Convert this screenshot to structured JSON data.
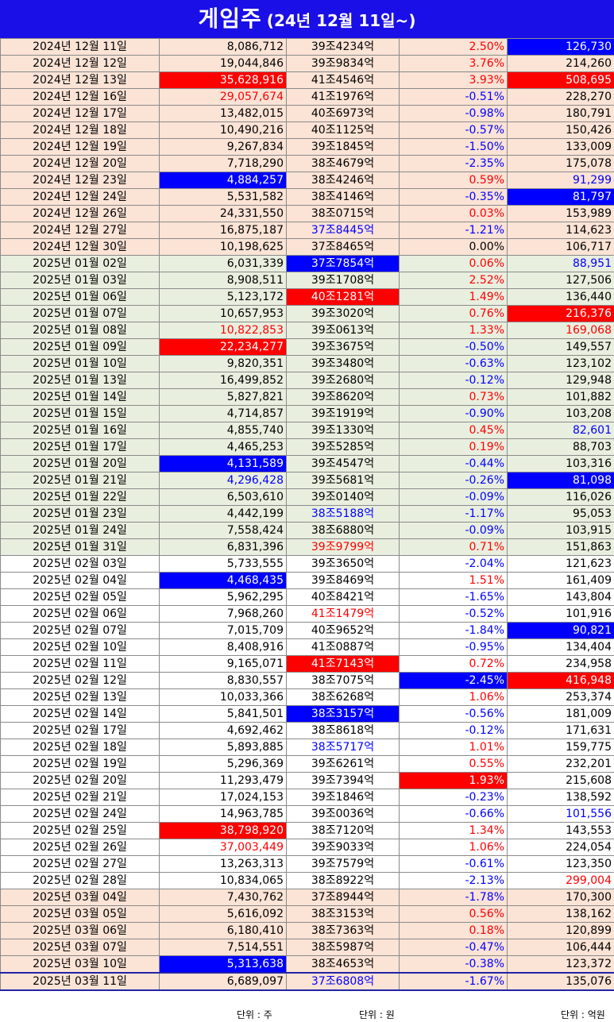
{
  "title": {
    "main": "게임주",
    "sub": "(24년 12월 11일~)"
  },
  "colors": {
    "title_bg": "#1a0fe6",
    "up": "#ff0000",
    "down": "#0000ff",
    "bg_2024": "#fbe3d6",
    "bg_jan": "#e9efdf",
    "bg_feb": "#ffffff"
  },
  "rows": [
    {
      "date": "2024년 12월 11일",
      "volume": "8,086,712",
      "mcap": "39조4234억",
      "change": "2.50%",
      "value": "126,730",
      "band": "y2024",
      "st": [
        "",
        "",
        "",
        "red",
        "hl-blue"
      ]
    },
    {
      "date": "2024년 12월 12일",
      "volume": "19,044,846",
      "mcap": "39조9834억",
      "change": "3.76%",
      "value": "214,260",
      "band": "y2024",
      "st": [
        "",
        "",
        "",
        "red",
        ""
      ]
    },
    {
      "date": "2024년 12월 13일",
      "volume": "35,628,916",
      "mcap": "41조4546억",
      "change": "3.93%",
      "value": "508,695",
      "band": "y2024",
      "st": [
        "",
        "hl-red",
        "",
        "red",
        "hl-red"
      ]
    },
    {
      "date": "2024년 12월 16일",
      "volume": "29,057,674",
      "mcap": "41조1976억",
      "change": "-0.51%",
      "value": "228,270",
      "band": "y2024",
      "st": [
        "",
        "red",
        "",
        "blue",
        ""
      ]
    },
    {
      "date": "2024년 12월 17일",
      "volume": "13,482,015",
      "mcap": "40조6973억",
      "change": "-0.98%",
      "value": "180,791",
      "band": "y2024",
      "st": [
        "",
        "",
        "",
        "blue",
        ""
      ]
    },
    {
      "date": "2024년 12월 18일",
      "volume": "10,490,216",
      "mcap": "40조1125억",
      "change": "-0.57%",
      "value": "150,426",
      "band": "y2024",
      "st": [
        "",
        "",
        "",
        "blue",
        ""
      ]
    },
    {
      "date": "2024년 12월 19일",
      "volume": "9,267,834",
      "mcap": "39조1845억",
      "change": "-1.50%",
      "value": "133,009",
      "band": "y2024",
      "st": [
        "",
        "",
        "",
        "blue",
        ""
      ]
    },
    {
      "date": "2024년 12월 20일",
      "volume": "7,718,290",
      "mcap": "38조4679억",
      "change": "-2.35%",
      "value": "175,078",
      "band": "y2024",
      "st": [
        "",
        "",
        "",
        "blue",
        ""
      ]
    },
    {
      "date": "2024년 12월 23일",
      "volume": "4,884,257",
      "mcap": "38조4246억",
      "change": "0.59%",
      "value": "91,299",
      "band": "y2024",
      "st": [
        "",
        "hl-blue",
        "",
        "red",
        "blue"
      ]
    },
    {
      "date": "2024년 12월 24일",
      "volume": "5,531,582",
      "mcap": "38조4146억",
      "change": "-0.35%",
      "value": "81,797",
      "band": "y2024",
      "st": [
        "",
        "",
        "",
        "blue",
        "hl-blue"
      ]
    },
    {
      "date": "2024년 12월 26일",
      "volume": "24,331,550",
      "mcap": "38조0715억",
      "change": "0.03%",
      "value": "153,989",
      "band": "y2024",
      "st": [
        "",
        "",
        "",
        "red",
        ""
      ]
    },
    {
      "date": "2024년 12월 27일",
      "volume": "16,875,187",
      "mcap": "37조8445억",
      "change": "-1.21%",
      "value": "114,623",
      "band": "y2024",
      "st": [
        "",
        "",
        "blue",
        "blue",
        ""
      ]
    },
    {
      "date": "2024년 12월 30일",
      "volume": "10,198,625",
      "mcap": "37조8465억",
      "change": "0.00%",
      "value": "106,717",
      "band": "y2024",
      "st": [
        "",
        "",
        "",
        "",
        ""
      ]
    },
    {
      "date": "2025년 01월 02일",
      "volume": "6,031,339",
      "mcap": "37조7854억",
      "change": "0.06%",
      "value": "88,951",
      "band": "jan25",
      "st": [
        "",
        "",
        "hl-blue",
        "red",
        "blue"
      ]
    },
    {
      "date": "2025년 01월 03일",
      "volume": "8,908,511",
      "mcap": "39조1708억",
      "change": "2.52%",
      "value": "127,506",
      "band": "jan25",
      "st": [
        "",
        "",
        "",
        "red",
        ""
      ]
    },
    {
      "date": "2025년 01월 06일",
      "volume": "5,123,172",
      "mcap": "40조1281억",
      "change": "1.49%",
      "value": "136,440",
      "band": "jan25",
      "st": [
        "",
        "",
        "hl-red",
        "red",
        ""
      ]
    },
    {
      "date": "2025년 01월 07일",
      "volume": "10,657,953",
      "mcap": "39조3020억",
      "change": "0.76%",
      "value": "216,376",
      "band": "jan25",
      "st": [
        "",
        "",
        "",
        "red",
        "hl-red"
      ]
    },
    {
      "date": "2025년 01월 08일",
      "volume": "10,822,853",
      "mcap": "39조0613억",
      "change": "1.33%",
      "value": "169,068",
      "band": "jan25",
      "st": [
        "",
        "red",
        "",
        "red",
        "red"
      ]
    },
    {
      "date": "2025년 01월 09일",
      "volume": "22,234,277",
      "mcap": "39조3675억",
      "change": "-0.50%",
      "value": "149,557",
      "band": "jan25",
      "st": [
        "",
        "hl-red",
        "",
        "blue",
        ""
      ]
    },
    {
      "date": "2025년 01월 10일",
      "volume": "9,820,351",
      "mcap": "39조3480억",
      "change": "-0.63%",
      "value": "123,102",
      "band": "jan25",
      "st": [
        "",
        "",
        "",
        "blue",
        ""
      ]
    },
    {
      "date": "2025년 01월 13일",
      "volume": "16,499,852",
      "mcap": "39조2680억",
      "change": "-0.12%",
      "value": "129,948",
      "band": "jan25",
      "st": [
        "",
        "",
        "",
        "blue",
        ""
      ]
    },
    {
      "date": "2025년 01월 14일",
      "volume": "5,827,821",
      "mcap": "39조8620억",
      "change": "0.73%",
      "value": "101,882",
      "band": "jan25",
      "st": [
        "",
        "",
        "",
        "red",
        ""
      ]
    },
    {
      "date": "2025년 01월 15일",
      "volume": "4,714,857",
      "mcap": "39조1919억",
      "change": "-0.90%",
      "value": "103,208",
      "band": "jan25",
      "st": [
        "",
        "",
        "",
        "blue",
        ""
      ]
    },
    {
      "date": "2025년 01월 16일",
      "volume": "4,855,740",
      "mcap": "39조1330억",
      "change": "0.45%",
      "value": "82,601",
      "band": "jan25",
      "st": [
        "",
        "",
        "",
        "red",
        "blue"
      ]
    },
    {
      "date": "2025년 01월 17일",
      "volume": "4,465,253",
      "mcap": "39조5285억",
      "change": "0.19%",
      "value": "88,703",
      "band": "jan25",
      "st": [
        "",
        "",
        "",
        "red",
        ""
      ]
    },
    {
      "date": "2025년 01월 20일",
      "volume": "4,131,589",
      "mcap": "39조4547억",
      "change": "-0.44%",
      "value": "103,316",
      "band": "jan25",
      "st": [
        "",
        "hl-blue",
        "",
        "blue",
        ""
      ]
    },
    {
      "date": "2025년 01월 21일",
      "volume": "4,296,428",
      "mcap": "39조5681억",
      "change": "-0.26%",
      "value": "81,098",
      "band": "jan25",
      "st": [
        "",
        "blue",
        "",
        "blue",
        "hl-blue"
      ]
    },
    {
      "date": "2025년 01월 22일",
      "volume": "6,503,610",
      "mcap": "39조0140억",
      "change": "-0.09%",
      "value": "116,026",
      "band": "jan25",
      "st": [
        "",
        "",
        "",
        "blue",
        ""
      ]
    },
    {
      "date": "2025년 01월 23일",
      "volume": "4,442,199",
      "mcap": "38조5188억",
      "change": "-1.17%",
      "value": "95,053",
      "band": "jan25",
      "st": [
        "",
        "",
        "blue",
        "blue",
        ""
      ]
    },
    {
      "date": "2025년 01월 24일",
      "volume": "7,558,424",
      "mcap": "38조6880억",
      "change": "-0.09%",
      "value": "103,915",
      "band": "jan25",
      "st": [
        "",
        "",
        "",
        "blue",
        ""
      ]
    },
    {
      "date": "2025년 01월 31일",
      "volume": "6,831,396",
      "mcap": "39조9799억",
      "change": "0.71%",
      "value": "151,863",
      "band": "jan25",
      "st": [
        "",
        "",
        "red",
        "red",
        ""
      ]
    },
    {
      "date": "2025년 02월 03일",
      "volume": "5,733,555",
      "mcap": "39조3650억",
      "change": "-2.04%",
      "value": "121,623",
      "band": "feb25",
      "st": [
        "",
        "",
        "",
        "blue",
        ""
      ]
    },
    {
      "date": "2025년 02월 04일",
      "volume": "4,468,435",
      "mcap": "39조8469억",
      "change": "1.51%",
      "value": "161,409",
      "band": "feb25",
      "st": [
        "",
        "hl-blue",
        "",
        "red",
        ""
      ]
    },
    {
      "date": "2025년 02월 05일",
      "volume": "5,962,295",
      "mcap": "40조8421억",
      "change": "-1.65%",
      "value": "143,804",
      "band": "feb25",
      "st": [
        "",
        "",
        "",
        "blue",
        ""
      ]
    },
    {
      "date": "2025년 02월 06일",
      "volume": "7,968,260",
      "mcap": "41조1479억",
      "change": "-0.52%",
      "value": "101,916",
      "band": "feb25",
      "st": [
        "",
        "",
        "red",
        "blue",
        ""
      ]
    },
    {
      "date": "2025년 02월 07일",
      "volume": "7,015,709",
      "mcap": "40조9652억",
      "change": "-1.84%",
      "value": "90,821",
      "band": "feb25",
      "st": [
        "",
        "",
        "",
        "blue",
        "hl-blue"
      ]
    },
    {
      "date": "2025년 02월 10일",
      "volume": "8,408,916",
      "mcap": "41조0887억",
      "change": "-0.95%",
      "value": "134,404",
      "band": "feb25",
      "st": [
        "",
        "",
        "",
        "blue",
        ""
      ]
    },
    {
      "date": "2025년 02월 11일",
      "volume": "9,165,071",
      "mcap": "41조7143억",
      "change": "0.72%",
      "value": "234,958",
      "band": "feb25",
      "st": [
        "",
        "",
        "hl-red",
        "red",
        ""
      ]
    },
    {
      "date": "2025년 02월 12일",
      "volume": "8,830,557",
      "mcap": "38조7075억",
      "change": "-2.45%",
      "value": "416,948",
      "band": "feb25",
      "st": [
        "",
        "",
        "",
        "hl-blue",
        "hl-red"
      ]
    },
    {
      "date": "2025년 02월 13일",
      "volume": "10,033,366",
      "mcap": "38조6268억",
      "change": "1.06%",
      "value": "253,374",
      "band": "feb25",
      "st": [
        "",
        "",
        "",
        "red",
        ""
      ]
    },
    {
      "date": "2025년 02월 14일",
      "volume": "5,841,501",
      "mcap": "38조3157억",
      "change": "-0.56%",
      "value": "181,009",
      "band": "feb25",
      "st": [
        "",
        "",
        "hl-blue",
        "blue",
        ""
      ]
    },
    {
      "date": "2025년 02월 17일",
      "volume": "4,692,462",
      "mcap": "38조8618억",
      "change": "-0.12%",
      "value": "171,631",
      "band": "feb25",
      "st": [
        "",
        "",
        "",
        "blue",
        ""
      ]
    },
    {
      "date": "2025년 02월 18일",
      "volume": "5,893,885",
      "mcap": "38조5717억",
      "change": "1.01%",
      "value": "159,775",
      "band": "feb25",
      "st": [
        "",
        "",
        "blue",
        "red",
        ""
      ]
    },
    {
      "date": "2025년 02월 19일",
      "volume": "5,296,369",
      "mcap": "39조6261억",
      "change": "0.55%",
      "value": "232,201",
      "band": "feb25",
      "st": [
        "",
        "",
        "",
        "red",
        ""
      ]
    },
    {
      "date": "2025년 02월 20일",
      "volume": "11,293,479",
      "mcap": "39조7394억",
      "change": "1.93%",
      "value": "215,608",
      "band": "feb25",
      "st": [
        "",
        "",
        "",
        "hl-red",
        ""
      ]
    },
    {
      "date": "2025년 02월 21일",
      "volume": "17,024,153",
      "mcap": "39조1846억",
      "change": "-0.23%",
      "value": "138,592",
      "band": "feb25",
      "st": [
        "",
        "",
        "",
        "blue",
        ""
      ]
    },
    {
      "date": "2025년 02월 24일",
      "volume": "14,963,785",
      "mcap": "39조0036억",
      "change": "-0.66%",
      "value": "101,556",
      "band": "feb25",
      "st": [
        "",
        "",
        "",
        "blue",
        "blue"
      ]
    },
    {
      "date": "2025년 02월 25일",
      "volume": "38,798,920",
      "mcap": "38조7120억",
      "change": "1.34%",
      "value": "143,553",
      "band": "feb25",
      "st": [
        "",
        "hl-red",
        "",
        "red",
        ""
      ]
    },
    {
      "date": "2025년 02월 26일",
      "volume": "37,003,449",
      "mcap": "39조9033억",
      "change": "1.06%",
      "value": "224,054",
      "band": "feb25",
      "st": [
        "",
        "red",
        "",
        "red",
        ""
      ]
    },
    {
      "date": "2025년 02월 27일",
      "volume": "13,263,313",
      "mcap": "39조7579억",
      "change": "-0.61%",
      "value": "123,350",
      "band": "feb25",
      "st": [
        "",
        "",
        "",
        "blue",
        ""
      ]
    },
    {
      "date": "2025년 02월 28일",
      "volume": "10,834,065",
      "mcap": "38조8922억",
      "change": "-2.13%",
      "value": "299,004",
      "band": "feb25",
      "st": [
        "",
        "",
        "",
        "blue",
        "red"
      ]
    },
    {
      "date": "2025년 03월 04일",
      "volume": "7,430,762",
      "mcap": "37조8944억",
      "change": "-1.78%",
      "value": "170,300",
      "band": "feb25b",
      "st": [
        "",
        "",
        "",
        "blue",
        ""
      ]
    },
    {
      "date": "2025년 03월 05일",
      "volume": "5,616,092",
      "mcap": "38조3153억",
      "change": "0.56%",
      "value": "138,162",
      "band": "feb25b",
      "st": [
        "",
        "",
        "",
        "red",
        ""
      ]
    },
    {
      "date": "2025년 03월 06일",
      "volume": "6,180,410",
      "mcap": "38조7363억",
      "change": "0.18%",
      "value": "120,899",
      "band": "feb25b",
      "st": [
        "",
        "",
        "",
        "red",
        ""
      ]
    },
    {
      "date": "2025년 03월 07일",
      "volume": "7,514,551",
      "mcap": "38조5987억",
      "change": "-0.47%",
      "value": "106,444",
      "band": "feb25b",
      "st": [
        "",
        "",
        "",
        "blue",
        ""
      ]
    },
    {
      "date": "2025년 03월 10일",
      "volume": "5,313,638",
      "mcap": "38조4653억",
      "change": "-0.38%",
      "value": "123,372",
      "band": "feb25b",
      "st": [
        "",
        "hl-blue",
        "",
        "blue",
        ""
      ]
    },
    {
      "date": "2025년 03월 11일",
      "volume": "6,689,097",
      "mcap": "37조6808억",
      "change": "-1.67%",
      "value": "135,076",
      "band": "last",
      "st": [
        "",
        "",
        "blue",
        "blue",
        ""
      ]
    }
  ],
  "footer": {
    "unit_volume": "단위 : 주",
    "unit_mcap": "단위 : 원",
    "unit_value": "단위 : 억원"
  }
}
